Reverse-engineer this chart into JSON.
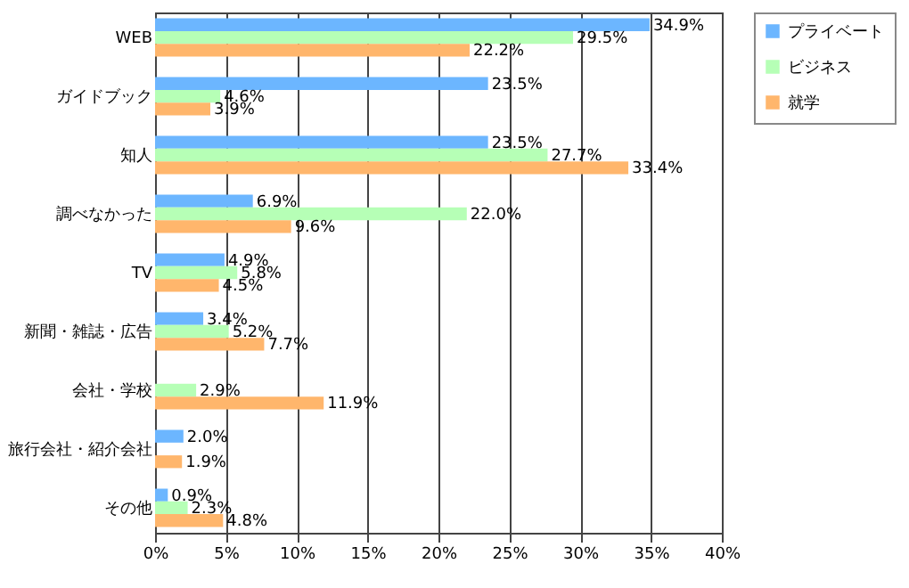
{
  "chart_data": {
    "type": "bar",
    "orientation": "horizontal",
    "categories": [
      "WEB",
      "ガイドブック",
      "知人",
      "調べなかった",
      "TV",
      "新聞・雑誌・広告",
      "会社・学校",
      "旅行会社・紹介会社",
      "その他"
    ],
    "series": [
      {
        "name": "プライベート",
        "color": "#6cb6ff",
        "values": [
          34.9,
          23.5,
          23.5,
          6.9,
          4.9,
          3.4,
          null,
          2.0,
          0.9
        ],
        "value_labels": [
          "34.9%",
          "23.5%",
          "23.5%",
          "6.9%",
          "4.9%",
          "3.4%",
          null,
          "2.0%",
          "0.9%"
        ]
      },
      {
        "name": "ビジネス",
        "color": "#b6ffb6",
        "values": [
          29.5,
          4.6,
          27.7,
          22.0,
          5.8,
          5.2,
          2.9,
          null,
          2.3
        ],
        "value_labels": [
          "29.5%",
          "4.6%",
          "27.7%",
          "22.0%",
          "5.8%",
          "5.2%",
          "2.9%",
          null,
          "2.3%"
        ]
      },
      {
        "name": "就学",
        "color": "#ffb66c",
        "values": [
          22.2,
          3.9,
          33.4,
          9.6,
          4.5,
          7.7,
          11.9,
          1.9,
          4.8
        ],
        "value_labels": [
          "22.2%",
          "3.9%",
          "33.4%",
          "9.6%",
          "4.5%",
          "7.7%",
          "11.9%",
          "1.9%",
          "4.8%"
        ]
      }
    ],
    "xlim": [
      0,
      40
    ],
    "xticks": [
      {
        "value": 0,
        "label": "0%"
      },
      {
        "value": 5,
        "label": "5%"
      },
      {
        "value": 10,
        "label": "10%"
      },
      {
        "value": 15,
        "label": "15%"
      },
      {
        "value": 20,
        "label": "20%"
      },
      {
        "value": 25,
        "label": "25%"
      },
      {
        "value": 30,
        "label": "30%"
      },
      {
        "value": 35,
        "label": "35%"
      },
      {
        "value": 40,
        "label": "40%"
      }
    ],
    "grid": "x",
    "legend": "top right"
  }
}
